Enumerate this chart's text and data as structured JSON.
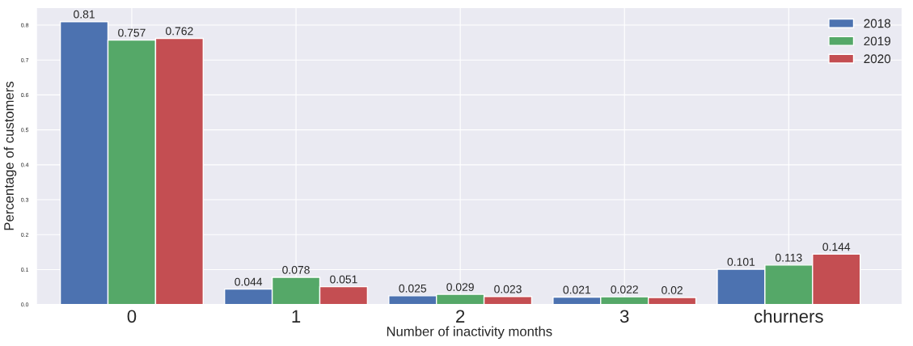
{
  "chart_data": {
    "type": "bar",
    "xlabel": "Number of inactivity months",
    "ylabel": "Percentage of customers",
    "categories": [
      "0",
      "1",
      "2",
      "3",
      "churners"
    ],
    "series": [
      {
        "name": "2018",
        "color": "#4c72b0",
        "values": [
          0.81,
          0.044,
          0.025,
          0.021,
          0.101
        ]
      },
      {
        "name": "2019",
        "color": "#55a868",
        "values": [
          0.757,
          0.078,
          0.029,
          0.022,
          0.113
        ]
      },
      {
        "name": "2020",
        "color": "#c44e52",
        "values": [
          0.762,
          0.051,
          0.023,
          0.02,
          0.144
        ]
      }
    ],
    "ylim": [
      0,
      0.85
    ],
    "yticks": [
      {
        "value": 0,
        "label": "0.0"
      },
      0.1,
      0.2,
      0.3,
      0.4,
      0.5,
      0.6,
      0.7,
      0.8
    ],
    "data_labels": true,
    "grid": true,
    "legend": "top right"
  }
}
